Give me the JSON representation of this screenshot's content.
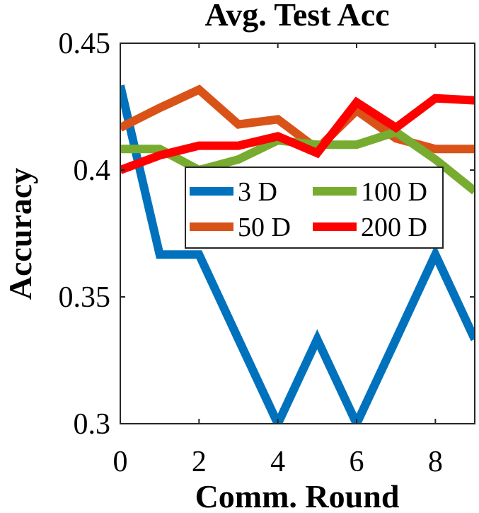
{
  "chart_data": {
    "type": "line",
    "title": "Avg. Test Acc",
    "xlabel": "Comm. Round",
    "ylabel": "Accuracy",
    "xlim": [
      0,
      9
    ],
    "ylim": [
      0.3,
      0.45
    ],
    "xticks": [
      0,
      2,
      4,
      6,
      8
    ],
    "xtick_labels": [
      "0",
      "2",
      "4",
      "6",
      "8"
    ],
    "yticks": [
      0.3,
      0.35,
      0.4,
      0.45
    ],
    "ytick_labels": [
      "0.3",
      "0.35",
      "0.4",
      "0.45"
    ],
    "x": [
      0,
      1,
      2,
      3,
      4,
      5,
      6,
      7,
      8,
      9
    ],
    "series": [
      {
        "name": "3 D",
        "color": "#0072BD",
        "values": [
          0.4333,
          0.3667,
          0.3667,
          0.3333,
          0.3,
          0.3333,
          0.3,
          0.3333,
          0.3667,
          0.3333
        ]
      },
      {
        "name": "50 D",
        "color": "#D95319",
        "values": [
          0.4167,
          0.4245,
          0.4317,
          0.418,
          0.42,
          0.4083,
          0.4235,
          0.4125,
          0.4083,
          0.4083
        ]
      },
      {
        "name": "100 D",
        "color": "#77AC30",
        "values": [
          0.4083,
          0.4083,
          0.4,
          0.4042,
          0.4117,
          0.41,
          0.41,
          0.415,
          0.4042,
          0.3917
        ]
      },
      {
        "name": "200 D",
        "color": "#FF0000",
        "values": [
          0.4,
          0.4058,
          0.4096,
          0.4096,
          0.4133,
          0.4067,
          0.4267,
          0.4167,
          0.4283,
          0.4275
        ]
      }
    ],
    "legend": {
      "location": "center",
      "layout": [
        [
          "3 D",
          "100 D"
        ],
        [
          "50 D",
          "200 D"
        ]
      ]
    },
    "grid": false
  }
}
